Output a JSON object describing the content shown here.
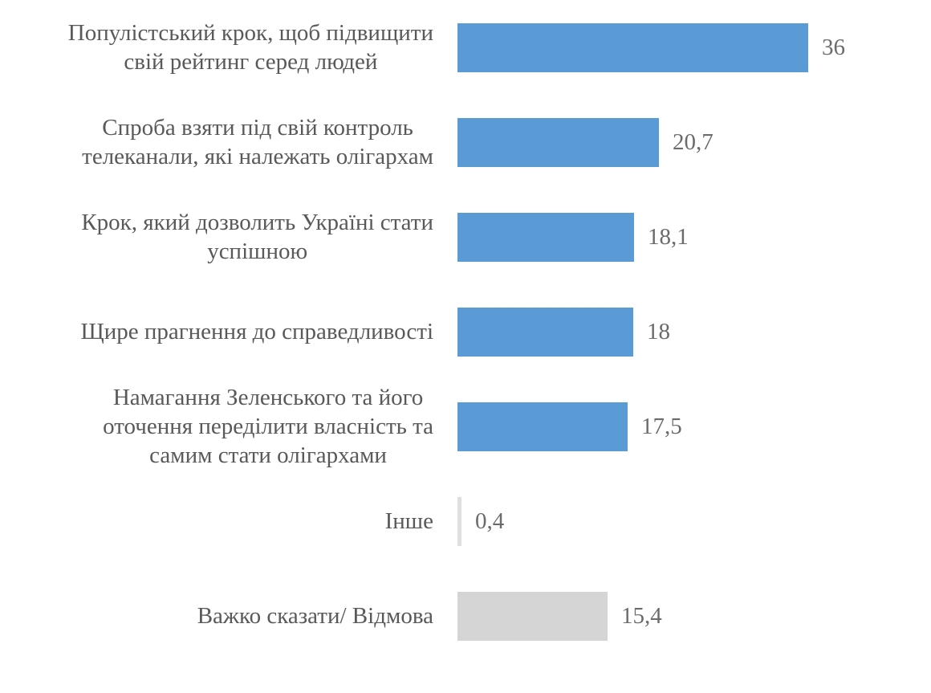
{
  "chart_data": {
    "type": "bar",
    "orientation": "horizontal",
    "title": "",
    "xlabel": "",
    "ylabel": "",
    "categories": [
      "Популістський крок, щоб підвищити свій рейтинг серед людей",
      "Спроба взяти під свій контроль телеканали, які належать олігархам",
      "Крок, який дозволить Україні стати успішною",
      "Щире прагнення до справедливості",
      "Намагання Зеленського та його оточення переділити власність та самим стати олігархами",
      "Інше",
      "Важко сказати/ Відмова"
    ],
    "values": [
      36,
      20.7,
      18.1,
      18,
      17.5,
      0.4,
      15.4
    ],
    "value_labels": [
      "36",
      "20,7",
      "18,1",
      "18",
      "17,5",
      "0,4",
      "15,4"
    ],
    "xlim": [
      0,
      40
    ],
    "grid": false,
    "legend": false,
    "data_labels_position": "outside-end",
    "axis_labels_visible": false
  },
  "colors": {
    "bar_blue": "#5B9BD5",
    "bar_gray": "#D5D5D5",
    "bar_gray_light": "#DFDFDF",
    "category_text": "#595959",
    "value_text": "#6B6B6B",
    "background": "#FFFFFF"
  },
  "rows": [
    {
      "label": "Популістський крок, щоб підвищити\nсвій рейтинг серед людей",
      "value": 36,
      "value_label": "36",
      "color": "#5B9BD5"
    },
    {
      "label": "Спроба взяти під свій контроль\nтелеканали, які належать олігархам",
      "value": 20.7,
      "value_label": "20,7",
      "color": "#5B9BD5"
    },
    {
      "label": "Крок, який дозволить Україні стати\nуспішною",
      "value": 18.1,
      "value_label": "18,1",
      "color": "#5B9BD5"
    },
    {
      "label": "Щире прагнення до справедливості",
      "value": 18,
      "value_label": "18",
      "color": "#5B9BD5"
    },
    {
      "label": "Намагання Зеленського та його\nоточення переділити власність та\nсамим стати олігархами",
      "value": 17.5,
      "value_label": "17,5",
      "color": "#5B9BD5"
    },
    {
      "label": "Інше",
      "value": 0.4,
      "value_label": "0,4",
      "color": "#DFDFDF"
    },
    {
      "label": "Важко сказати/ Відмова",
      "value": 15.4,
      "value_label": "15,4",
      "color": "#D5D5D5"
    }
  ]
}
